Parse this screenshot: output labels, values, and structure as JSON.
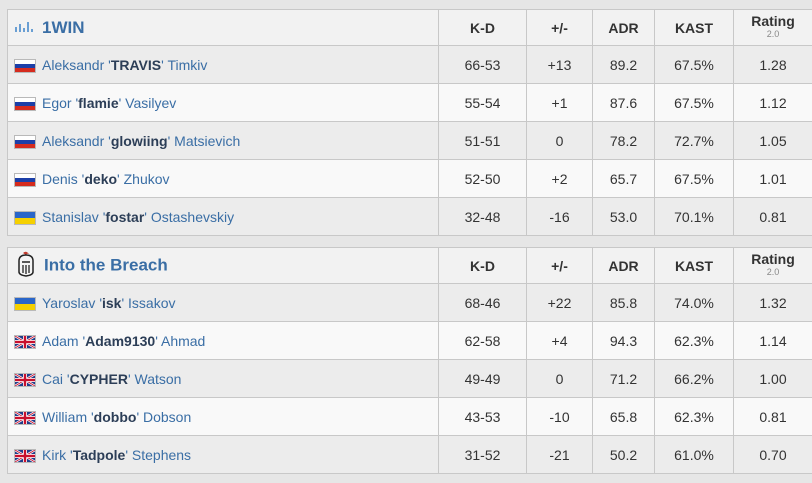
{
  "columns": {
    "kd": "K-D",
    "plus_minus": "+/-",
    "adr": "ADR",
    "kast": "KAST",
    "rating": "Rating",
    "rating_version": "2.0"
  },
  "colors": {
    "link": "#3a6ea5",
    "positive": "#2fa52f",
    "negative": "#d9372b"
  },
  "teams": [
    {
      "name": "1WIN",
      "logo_icon": "1win-logo-icon",
      "players": [
        {
          "first": "Aleksandr '",
          "nick": "TRAVIS",
          "last": "' Timkiv",
          "flag": "russia-flag-icon",
          "kd": "66-53",
          "pm": "+13",
          "pm_sign": "pos",
          "adr": "89.2",
          "kast": "67.5%",
          "rating": "1.28"
        },
        {
          "first": "Egor '",
          "nick": "flamie",
          "last": "' Vasilyev",
          "flag": "russia-flag-icon",
          "kd": "55-54",
          "pm": "+1",
          "pm_sign": "pos",
          "adr": "87.6",
          "kast": "67.5%",
          "rating": "1.12"
        },
        {
          "first": "Aleksandr '",
          "nick": "glowiing",
          "last": "' Matsievich",
          "flag": "russia-flag-icon",
          "kd": "51-51",
          "pm": "0",
          "pm_sign": "neu",
          "adr": "78.2",
          "kast": "72.7%",
          "rating": "1.05"
        },
        {
          "first": "Denis '",
          "nick": "deko",
          "last": "' Zhukov",
          "flag": "russia-flag-icon",
          "kd": "52-50",
          "pm": "+2",
          "pm_sign": "pos",
          "adr": "65.7",
          "kast": "67.5%",
          "rating": "1.01"
        },
        {
          "first": "Stanislav '",
          "nick": "fostar",
          "last": "' Ostashevskiy",
          "flag": "ukraine-flag-icon",
          "kd": "32-48",
          "pm": "-16",
          "pm_sign": "neg",
          "adr": "53.0",
          "kast": "70.1%",
          "rating": "0.81"
        }
      ]
    },
    {
      "name": "Into the Breach",
      "logo_icon": "knight-helmet-icon",
      "players": [
        {
          "first": "Yaroslav '",
          "nick": "isk",
          "last": "' Issakov",
          "flag": "ukraine-flag-icon",
          "kd": "68-46",
          "pm": "+22",
          "pm_sign": "pos",
          "adr": "85.8",
          "kast": "74.0%",
          "rating": "1.32"
        },
        {
          "first": "Adam '",
          "nick": "Adam9130",
          "last": "' Ahmad",
          "flag": "uk-flag-icon",
          "kd": "62-58",
          "pm": "+4",
          "pm_sign": "pos",
          "adr": "94.3",
          "kast": "62.3%",
          "rating": "1.14"
        },
        {
          "first": "Cai '",
          "nick": "CYPHER",
          "last": "' Watson",
          "flag": "uk-flag-icon",
          "kd": "49-49",
          "pm": "0",
          "pm_sign": "neu",
          "adr": "71.2",
          "kast": "66.2%",
          "rating": "1.00"
        },
        {
          "first": "William '",
          "nick": "dobbo",
          "last": "' Dobson",
          "flag": "uk-flag-icon",
          "kd": "43-53",
          "pm": "-10",
          "pm_sign": "neg",
          "adr": "65.8",
          "kast": "62.3%",
          "rating": "0.81"
        },
        {
          "first": "Kirk '",
          "nick": "Tadpole",
          "last": "' Stephens",
          "flag": "uk-flag-icon",
          "kd": "31-52",
          "pm": "-21",
          "pm_sign": "neg",
          "adr": "50.2",
          "kast": "61.0%",
          "rating": "0.70"
        }
      ]
    }
  ]
}
